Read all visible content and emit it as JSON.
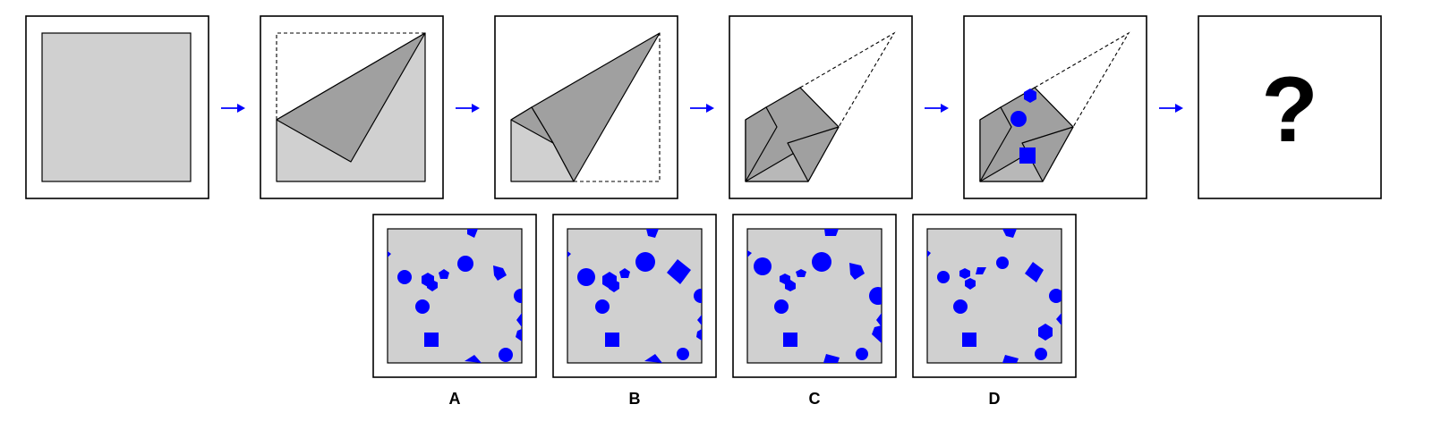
{
  "question": {
    "placeholder": "?"
  },
  "options": [
    {
      "label": "A"
    },
    {
      "label": "B"
    },
    {
      "label": "C"
    },
    {
      "label": "D"
    }
  ],
  "colors": {
    "paper": "#d0d0d0",
    "fold": "#a0a0a0",
    "hole": "#0000ff",
    "arrow": "#0000ff"
  }
}
